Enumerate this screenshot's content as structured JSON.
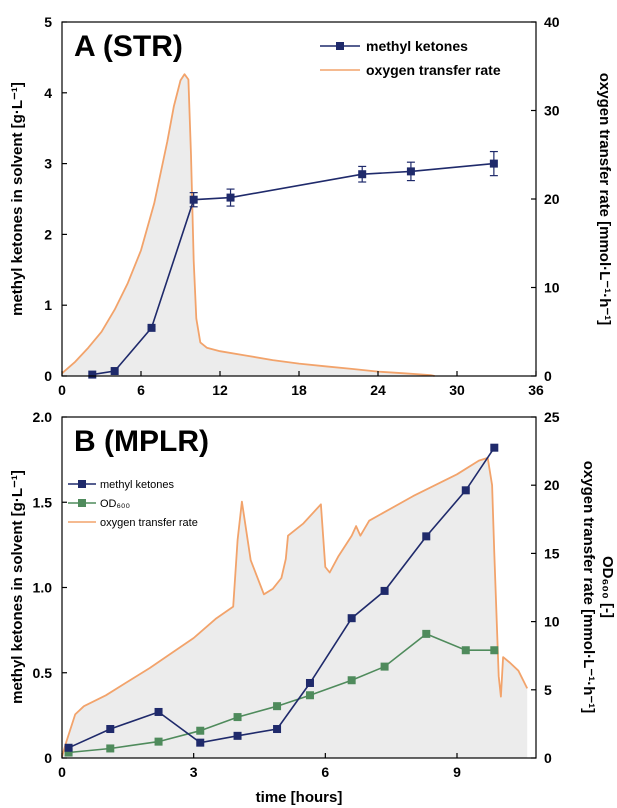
{
  "colors": {
    "methyl_ketones": "#1f2a6b",
    "od600": "#4f8b5c",
    "otr": "#f2a36b",
    "fill": "#e9e9e9"
  },
  "chart_data": [
    {
      "type": "line",
      "panel_label": "A (STR)",
      "xlim": [
        0,
        36
      ],
      "xticks": [
        0,
        6,
        12,
        18,
        24,
        30,
        36
      ],
      "ylim_left": [
        0,
        5
      ],
      "yticks_left": [
        0,
        1,
        2,
        3,
        4,
        5
      ],
      "ylabel_left": "methyl ketones in solvent  [g·L⁻¹]",
      "ylim_right": [
        0,
        40
      ],
      "yticks_right": [
        0,
        10,
        20,
        30,
        40
      ],
      "ylabel_right": "oxygen transfer rate  [mmol·L⁻¹·h⁻¹]",
      "legend": {
        "position": "top-right",
        "entries": [
          "methyl ketones",
          "oxygen transfer rate"
        ]
      },
      "series": [
        {
          "name": "methyl ketones",
          "axis": "left",
          "marker": "square",
          "x": [
            2.3,
            4.0,
            6.8,
            10.0,
            12.8,
            22.8,
            26.5,
            32.8
          ],
          "y": [
            0.02,
            0.07,
            0.68,
            2.49,
            2.52,
            2.85,
            2.89,
            3.0
          ],
          "error": [
            0,
            0,
            0.02,
            0.1,
            0.12,
            0.11,
            0.13,
            0.17
          ]
        },
        {
          "name": "oxygen transfer rate",
          "axis": "right",
          "x": [
            0,
            1,
            2,
            3,
            4,
            5,
            6,
            7,
            8,
            8.5,
            9,
            9.3,
            9.6,
            9.8,
            10.0,
            10.2,
            10.5,
            11,
            12,
            14,
            16,
            18,
            20,
            22,
            24,
            26,
            28,
            28.3
          ],
          "y": [
            0.3,
            1.6,
            3.2,
            5.0,
            7.5,
            10.5,
            14.2,
            19.5,
            26.5,
            30.5,
            33.4,
            34.1,
            33.5,
            25.0,
            13.0,
            6.5,
            3.8,
            3.2,
            2.8,
            2.3,
            1.8,
            1.4,
            1.1,
            0.8,
            0.5,
            0.3,
            0.1,
            0.0
          ]
        }
      ]
    },
    {
      "type": "line",
      "panel_label": "B (MPLR)",
      "xlim": [
        0,
        10.8
      ],
      "xticks": [
        0,
        3,
        6,
        9
      ],
      "xlabel": "time  [hours]",
      "ylim_left": [
        0,
        2.0
      ],
      "yticks_left": [
        "0",
        "0.5",
        "1.0",
        "1.5",
        "2.0"
      ],
      "ylabel_left": "methyl ketones in solvent  [g·L⁻¹]",
      "ylim_right": [
        0,
        25
      ],
      "yticks_right": [
        0,
        5,
        10,
        15,
        20,
        25
      ],
      "ylabel_right": "oxygen transfer rate  [mmol·L⁻¹·h⁻¹]",
      "ylabel_right2": "OD₆₀₀  [-]",
      "legend": {
        "position": "top-left",
        "entries": [
          "methyl ketones",
          "OD₆₀₀",
          "oxygen transfer rate"
        ]
      },
      "series": [
        {
          "name": "methyl ketones",
          "axis": "left",
          "marker": "square",
          "x": [
            0.15,
            1.1,
            2.2,
            3.15,
            4.0,
            4.9,
            5.65,
            6.6,
            7.35,
            8.3,
            9.2,
            9.85
          ],
          "y": [
            0.06,
            0.17,
            0.27,
            0.09,
            0.13,
            0.17,
            0.44,
            0.82,
            0.98,
            1.3,
            1.57,
            1.82
          ]
        },
        {
          "name": "OD₆₀₀",
          "axis": "right",
          "marker": "square",
          "x": [
            0.15,
            1.1,
            2.2,
            3.15,
            4.0,
            4.9,
            5.65,
            6.6,
            7.35,
            8.3,
            9.2,
            9.85
          ],
          "y": [
            0.4,
            0.7,
            1.2,
            2.0,
            3.0,
            3.8,
            4.6,
            5.7,
            6.7,
            9.1,
            7.9,
            7.9
          ]
        },
        {
          "name": "oxygen transfer rate",
          "axis": "right",
          "x": [
            0,
            0.1,
            0.3,
            0.5,
            1.0,
            1.5,
            2.0,
            2.5,
            3.0,
            3.5,
            3.9,
            4.0,
            4.1,
            4.3,
            4.6,
            4.8,
            5.0,
            5.1,
            5.15,
            5.5,
            5.9,
            6.0,
            6.1,
            6.3,
            6.6,
            6.7,
            6.8,
            7.0,
            8.0,
            9.0,
            9.5,
            9.7,
            9.8,
            9.85,
            9.95,
            10.0,
            10.05,
            10.2,
            10.4,
            10.6
          ],
          "y": [
            0.1,
            1.2,
            3.2,
            3.8,
            4.6,
            5.6,
            6.6,
            7.7,
            8.8,
            10.2,
            11.1,
            16.0,
            18.8,
            14.5,
            12.0,
            12.4,
            13.2,
            14.6,
            16.3,
            17.2,
            18.6,
            14.0,
            13.6,
            14.8,
            16.3,
            17.0,
            16.3,
            17.4,
            19.2,
            20.8,
            21.8,
            22.0,
            20.0,
            15.0,
            6.0,
            4.5,
            7.4,
            7.0,
            6.4,
            5.1
          ]
        }
      ]
    }
  ]
}
